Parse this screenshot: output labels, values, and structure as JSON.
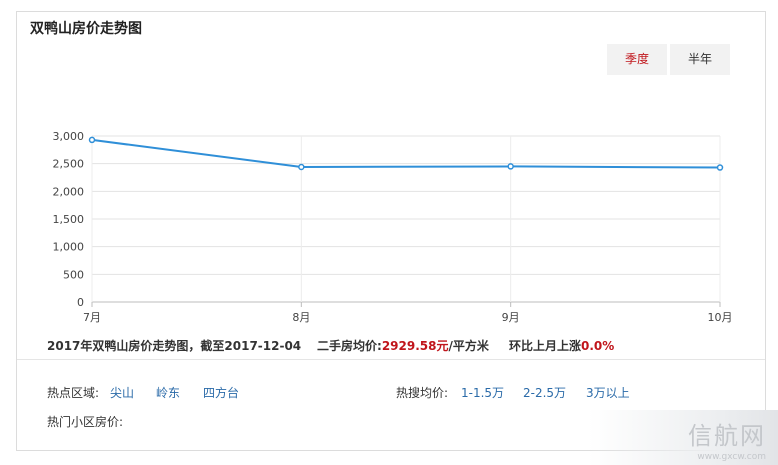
{
  "title": "双鸭山房价走势图",
  "range_buttons": {
    "quarter": "季度",
    "half_year": "半年"
  },
  "chart_data": {
    "type": "line",
    "categories": [
      "7月",
      "8月",
      "9月",
      "10月"
    ],
    "values": [
      2929.58,
      2440,
      2450,
      2430
    ],
    "ylim": [
      0,
      3000
    ],
    "yticks": [
      0,
      500,
      1000,
      1500,
      2000,
      2500,
      3000
    ],
    "ytick_labels": [
      "0",
      "500",
      "1,000",
      "1,500",
      "2,000",
      "2,500",
      "3,000"
    ],
    "xlabel": "",
    "ylabel": "",
    "grid": true,
    "line_color": "#2f8fd8"
  },
  "summary": {
    "prefix": "2017年双鸭山房价走势图，截至2017-12-04",
    "avg_label": "二手房均价:",
    "avg_value": "2929.58元",
    "avg_unit": "/平方米",
    "mom_label": "环比上月上涨",
    "mom_value": "0.0%"
  },
  "hot_areas": {
    "label": "热点区域:",
    "items": [
      "尖山",
      "岭东",
      "四方台"
    ]
  },
  "hot_prices": {
    "label": "热搜均价:",
    "items": [
      "1-1.5万",
      "2-2.5万",
      "3万以上"
    ]
  },
  "hot_communities": {
    "label": "热门小区房价:"
  },
  "watermark": {
    "text": "信航网",
    "url": "www.gxcw.com"
  }
}
